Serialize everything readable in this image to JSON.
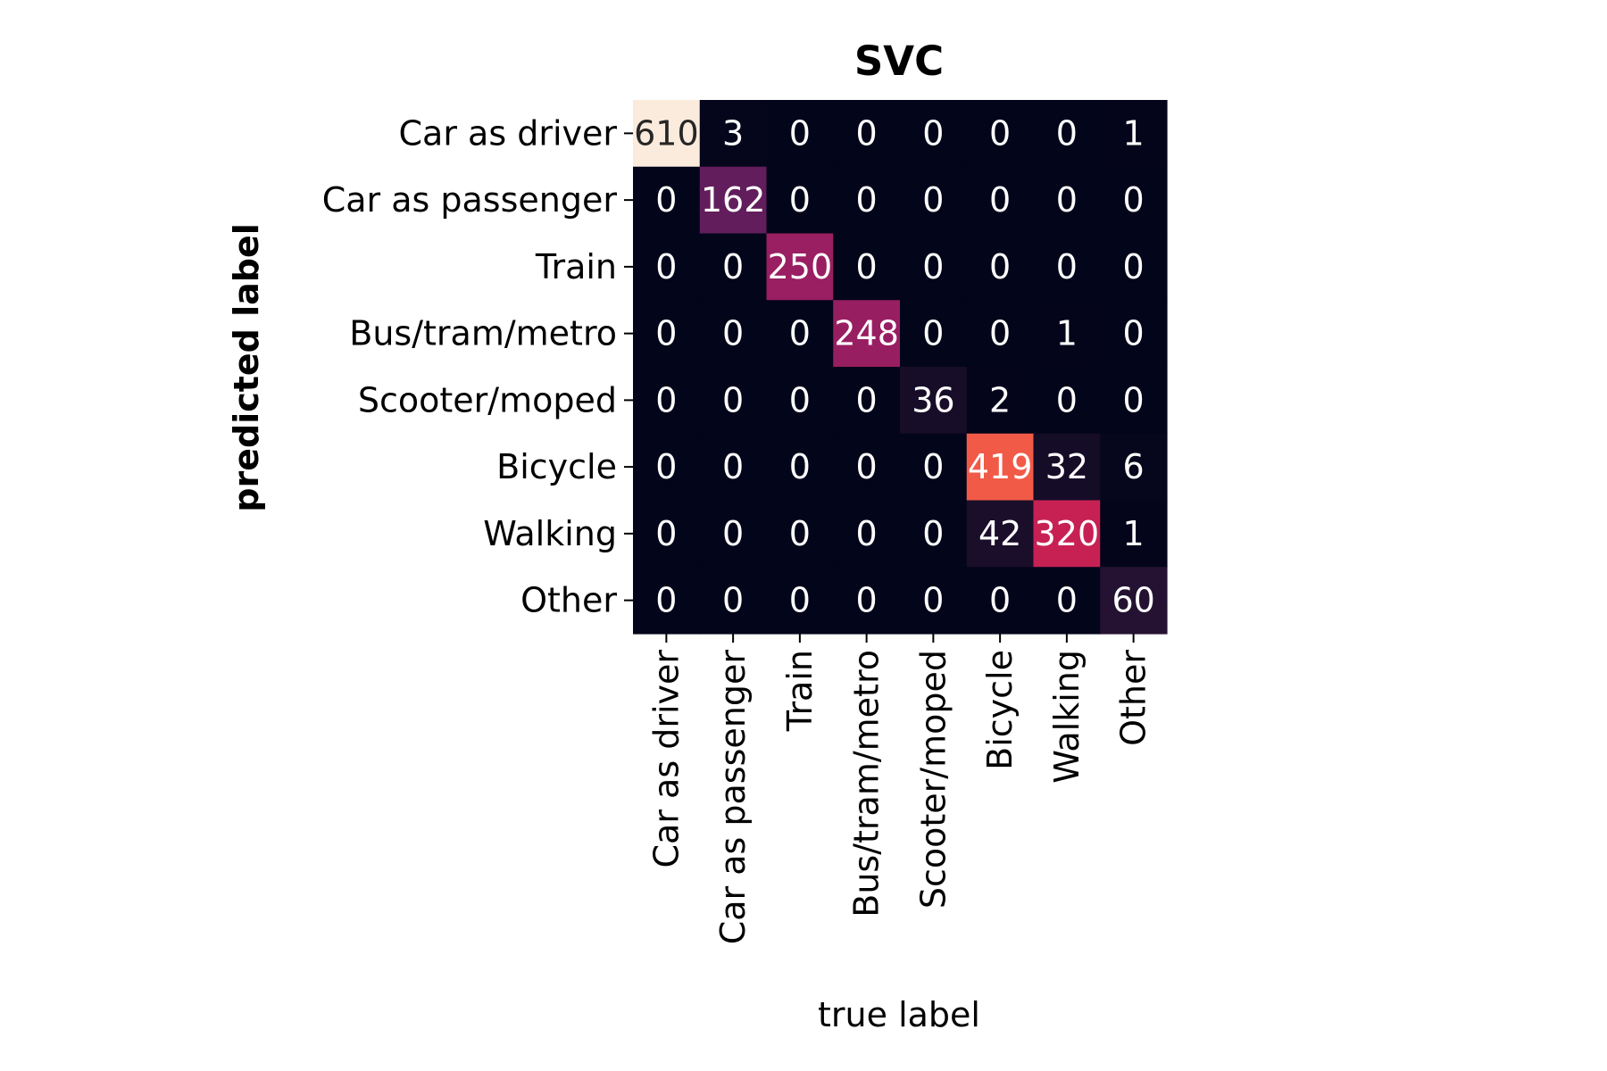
{
  "chart_data": {
    "type": "heatmap",
    "title": "SVC",
    "xlabel": "true label",
    "ylabel": "predicted label",
    "row_labels": [
      "Car as driver",
      "Car as passenger",
      "Train",
      "Bus/tram/metro",
      "Scooter/moped",
      "Bicycle",
      "Walking",
      "Other"
    ],
    "col_labels": [
      "Car as driver",
      "Car as passenger",
      "Train",
      "Bus/tram/metro",
      "Scooter/moped",
      "Bicycle",
      "Walking",
      "Other"
    ],
    "values": [
      [
        610,
        3,
        0,
        0,
        0,
        0,
        0,
        1
      ],
      [
        0,
        162,
        0,
        0,
        0,
        0,
        0,
        0
      ],
      [
        0,
        0,
        250,
        0,
        0,
        0,
        0,
        0
      ],
      [
        0,
        0,
        0,
        248,
        0,
        0,
        1,
        0
      ],
      [
        0,
        0,
        0,
        0,
        36,
        2,
        0,
        0
      ],
      [
        0,
        0,
        0,
        0,
        0,
        419,
        32,
        6
      ],
      [
        0,
        0,
        0,
        0,
        0,
        42,
        320,
        1
      ],
      [
        0,
        0,
        0,
        0,
        0,
        0,
        0,
        60
      ]
    ],
    "vmin": 0,
    "vmax": 610,
    "colormap": "rocket",
    "colorbar": false
  }
}
